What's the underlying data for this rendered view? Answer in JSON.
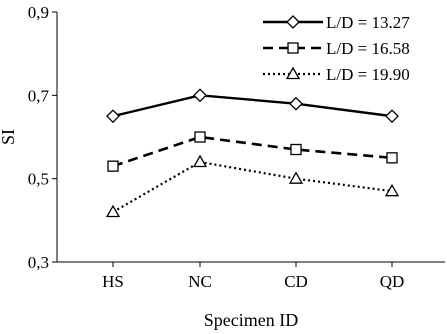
{
  "chart_data": {
    "type": "line",
    "categories": [
      "HS",
      "NC",
      "CD",
      "QD"
    ],
    "xlabel": "Specimen ID",
    "ylabel": "SI",
    "ylim": [
      0.3,
      0.9
    ],
    "yticks": [
      "0,3",
      "0,5",
      "0,7",
      "0,9"
    ],
    "ytick_values": [
      0.3,
      0.5,
      0.7,
      0.9
    ],
    "grid": false,
    "legend_position": "top-right",
    "series": [
      {
        "name": "L/D = 13.27",
        "values": [
          0.65,
          0.7,
          0.68,
          0.65
        ],
        "line_style": "solid",
        "marker": "diamond",
        "color": "#000000"
      },
      {
        "name": "L/D = 16.58",
        "values": [
          0.53,
          0.6,
          0.57,
          0.55
        ],
        "line_style": "dashed",
        "marker": "square",
        "color": "#000000"
      },
      {
        "name": "L/D = 19.90",
        "values": [
          0.42,
          0.54,
          0.5,
          0.47
        ],
        "line_style": "dotted",
        "marker": "triangle",
        "color": "#000000"
      }
    ]
  }
}
